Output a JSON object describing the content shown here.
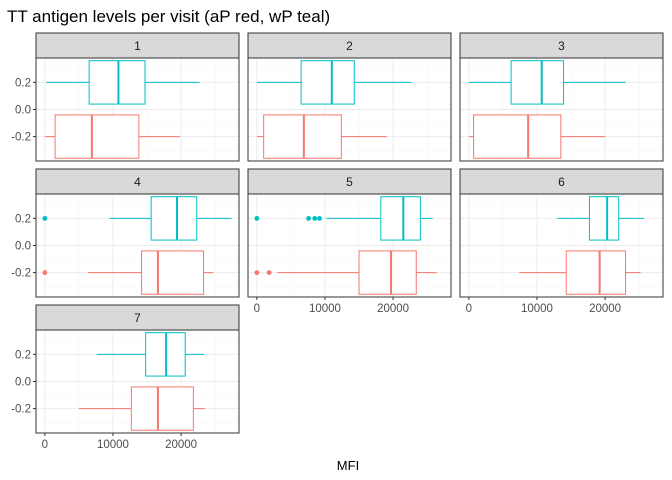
{
  "chart_data": {
    "type": "boxplot",
    "title": "TT antigen levels per visit (aP red, wP teal)",
    "xlabel": "MFI",
    "ylabel": "",
    "xlim": [
      -1300,
      28500
    ],
    "ylim": [
      -0.38,
      0.38
    ],
    "x_ticks": [
      0,
      10000,
      20000
    ],
    "x_tick_labels": [
      "0",
      "10000",
      "20000"
    ],
    "y_ticks": [
      0.2,
      0.0,
      -0.2
    ],
    "y_tick_labels": [
      "0.2",
      "0.0",
      "-0.2"
    ],
    "grid": true,
    "colors": {
      "aP": "#F8766D",
      "wP": "#00BFC4"
    },
    "groups": [
      {
        "key": "wP",
        "y": 0.2,
        "color": "#00BFC4"
      },
      {
        "key": "aP",
        "y": -0.2,
        "color": "#F8766D"
      }
    ],
    "panels": [
      {
        "label": "1",
        "boxes": {
          "wP": {
            "min": 200,
            "q1": 6500,
            "median": 10800,
            "q3": 14700,
            "max": 22700,
            "outliers": []
          },
          "aP": {
            "min": 0,
            "q1": 1500,
            "median": 6900,
            "q3": 13800,
            "max": 19800,
            "outliers": []
          }
        }
      },
      {
        "label": "2",
        "boxes": {
          "wP": {
            "min": 0,
            "q1": 6500,
            "median": 11000,
            "q3": 14300,
            "max": 22700,
            "outliers": []
          },
          "aP": {
            "min": 0,
            "q1": 1000,
            "median": 6900,
            "q3": 12400,
            "max": 19100,
            "outliers": []
          }
        }
      },
      {
        "label": "3",
        "boxes": {
          "wP": {
            "min": 0,
            "q1": 6200,
            "median": 10700,
            "q3": 13900,
            "max": 23000,
            "outliers": []
          },
          "aP": {
            "min": 0,
            "q1": 700,
            "median": 8700,
            "q3": 13500,
            "max": 20000,
            "outliers": []
          }
        }
      },
      {
        "label": "4",
        "boxes": {
          "wP": {
            "min": 9500,
            "q1": 15600,
            "median": 19400,
            "q3": 22300,
            "max": 27400,
            "outliers": [
              0
            ]
          },
          "aP": {
            "min": 6300,
            "q1": 14200,
            "median": 16600,
            "q3": 23300,
            "max": 24700,
            "outliers": [
              0
            ]
          }
        }
      },
      {
        "label": "5",
        "boxes": {
          "wP": {
            "min": 10200,
            "q1": 18200,
            "median": 21500,
            "q3": 24000,
            "max": 25800,
            "outliers": [
              0,
              7600,
              8500,
              9200
            ]
          },
          "aP": {
            "min": 3000,
            "q1": 15000,
            "median": 19700,
            "q3": 23400,
            "max": 26400,
            "outliers": [
              0,
              1800
            ]
          }
        }
      },
      {
        "label": "6",
        "boxes": {
          "wP": {
            "min": 13000,
            "q1": 17700,
            "median": 20300,
            "q3": 22000,
            "max": 25700,
            "outliers": []
          },
          "aP": {
            "min": 7400,
            "q1": 14300,
            "median": 19200,
            "q3": 23000,
            "max": 25200,
            "outliers": []
          }
        }
      },
      {
        "label": "7",
        "boxes": {
          "wP": {
            "min": 7600,
            "q1": 14800,
            "median": 17800,
            "q3": 20600,
            "max": 23400,
            "outliers": []
          },
          "aP": {
            "min": 5000,
            "q1": 12700,
            "median": 16600,
            "q3": 21800,
            "max": 23500,
            "outliers": []
          }
        }
      }
    ]
  }
}
